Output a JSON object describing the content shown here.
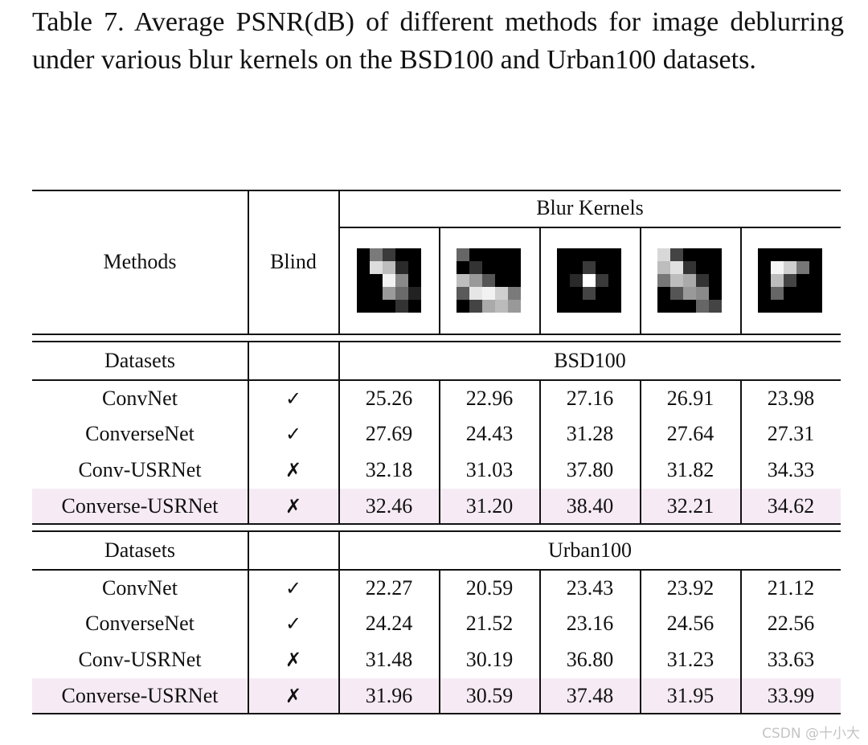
{
  "caption": "Table 7. Average PSNR(dB) of different methods for image deblurring under various blur kernels on the BSD100 and Urban100 datasets.",
  "header": {
    "methods": "Methods",
    "blind": "Blind",
    "blur_kernels": "Blur Kernels",
    "kernel_icons": [
      "diagonal-blob-kernel",
      "horizontal-streak-kernel",
      "point-kernel",
      "diagonal-streak-kernel",
      "corner-kernel"
    ]
  },
  "sections": [
    {
      "datasets_label": "Datasets",
      "dataset": "BSD100",
      "rows": [
        {
          "method": "ConvNet",
          "blind": "✓",
          "values": [
            "25.26",
            "22.96",
            "27.16",
            "26.91",
            "23.98"
          ]
        },
        {
          "method": "ConverseNet",
          "blind": "✓",
          "values": [
            "27.69",
            "24.43",
            "31.28",
            "27.64",
            "27.31"
          ]
        },
        {
          "method": "Conv-USRNet",
          "blind": "✗",
          "values": [
            "32.18",
            "31.03",
            "37.80",
            "31.82",
            "34.33"
          ]
        },
        {
          "method": "Converse-USRNet",
          "blind": "✗",
          "values": [
            "32.46",
            "31.20",
            "38.40",
            "32.21",
            "34.62"
          ],
          "highlight": true
        }
      ]
    },
    {
      "datasets_label": "Datasets",
      "dataset": "Urban100",
      "rows": [
        {
          "method": "ConvNet",
          "blind": "✓",
          "values": [
            "22.27",
            "20.59",
            "23.43",
            "23.92",
            "21.12"
          ]
        },
        {
          "method": "ConverseNet",
          "blind": "✓",
          "values": [
            "24.24",
            "21.52",
            "23.16",
            "24.56",
            "22.56"
          ]
        },
        {
          "method": "Conv-USRNet",
          "blind": "✗",
          "values": [
            "31.48",
            "30.19",
            "36.80",
            "31.23",
            "33.63"
          ]
        },
        {
          "method": "Converse-USRNet",
          "blind": "✗",
          "values": [
            "31.96",
            "30.59",
            "37.48",
            "31.95",
            "33.99"
          ],
          "highlight": true
        }
      ]
    }
  ],
  "highlight_color": "#f6ebf4",
  "watermark": "CSDN @十小大"
}
